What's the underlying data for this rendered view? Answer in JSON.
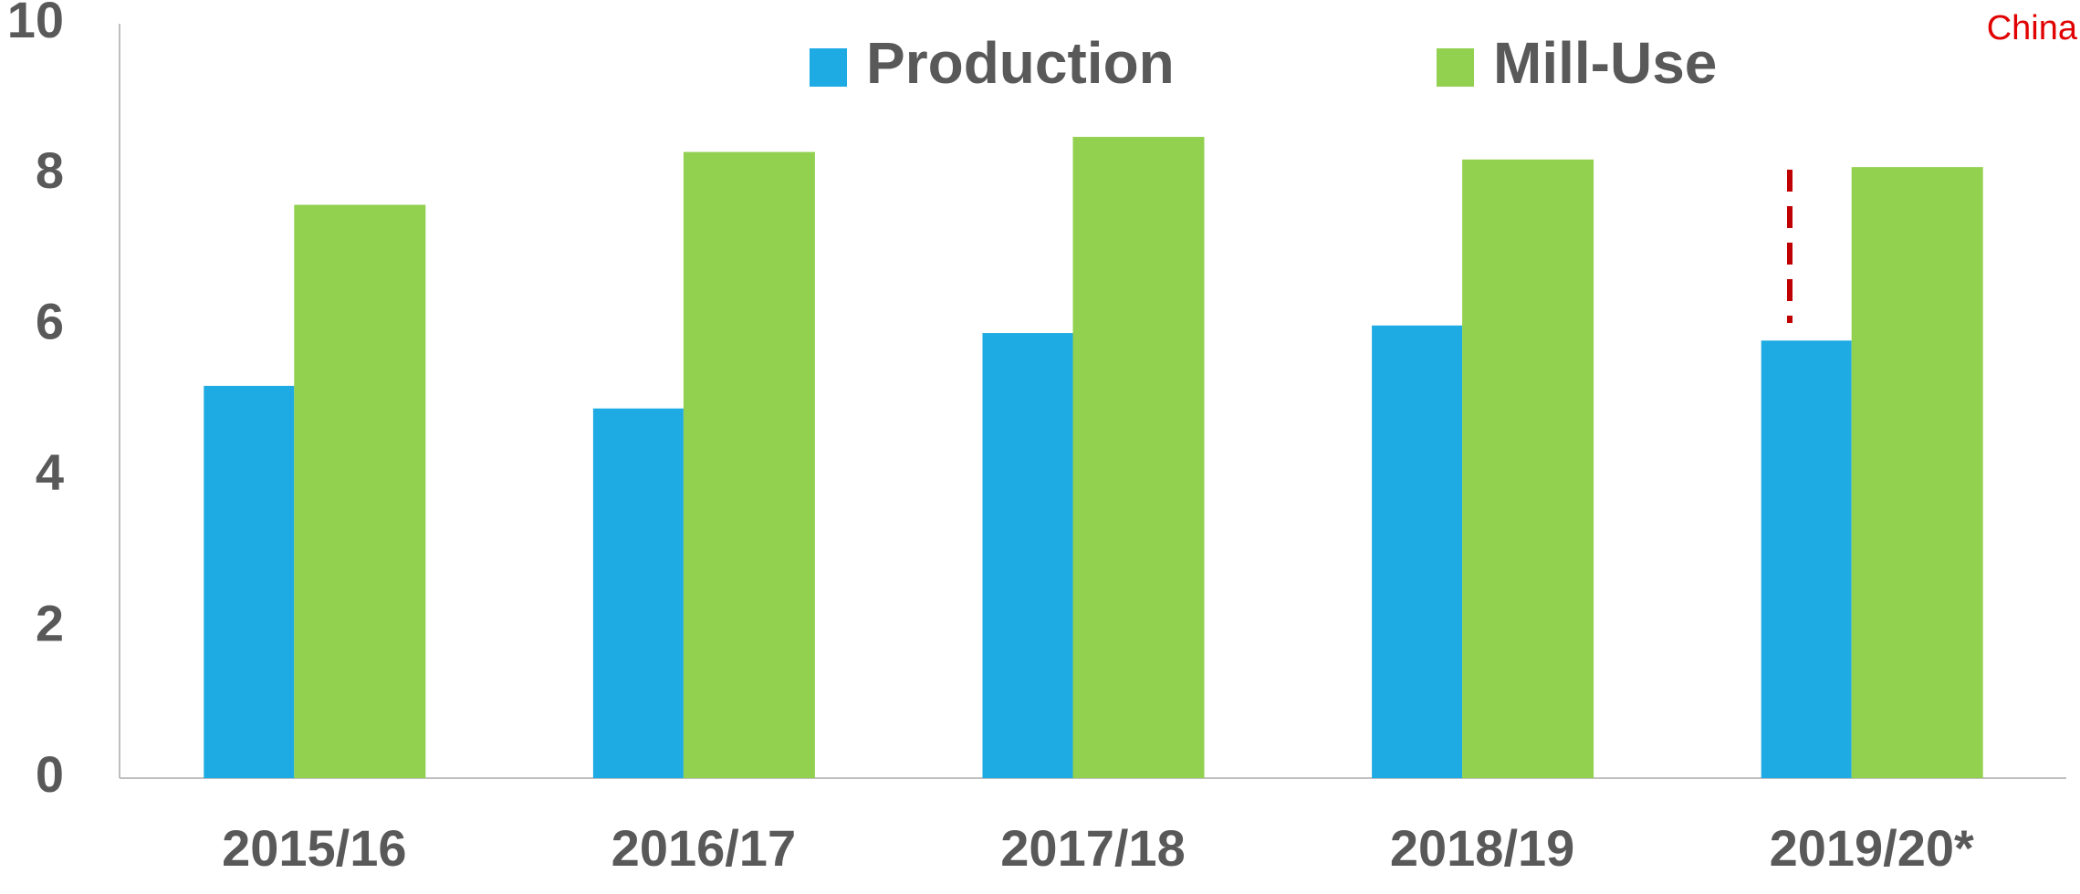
{
  "chart_data": {
    "type": "bar",
    "annotation": "China",
    "categories": [
      "2015/16",
      "2016/17",
      "2017/18",
      "2018/19",
      "2019/20*"
    ],
    "series": [
      {
        "name": "Production",
        "color": "#1eaae3",
        "values": [
          5.2,
          4.9,
          5.9,
          6.0,
          5.8
        ]
      },
      {
        "name": "Mill-Use",
        "color": "#92d050",
        "values": [
          7.6,
          8.3,
          8.5,
          8.2,
          8.1
        ]
      }
    ],
    "ylim": [
      0,
      10
    ],
    "yticks": [
      0,
      2,
      4,
      6,
      8,
      10
    ],
    "grid": false
  }
}
